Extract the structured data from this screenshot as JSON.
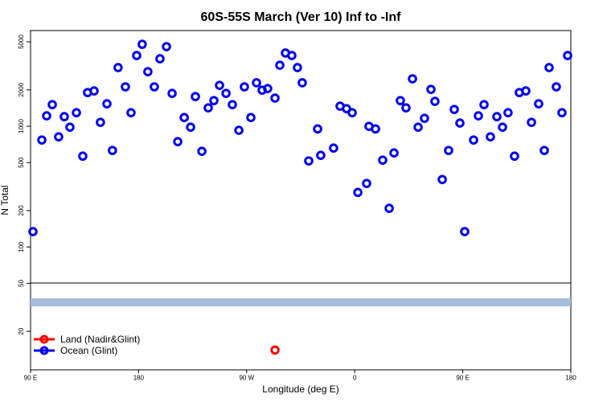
{
  "chart_data": {
    "type": "scatter",
    "title": "60S-55S March (Ver 10)   Inf to -Inf",
    "x_label": "Longitude (deg E)",
    "y_label": "N Total",
    "log_y": true,
    "legend_position": "bottom-left",
    "xlim": [
      90,
      540
    ],
    "xticks": [
      {
        "value": 90,
        "label": "90 E"
      },
      180,
      {
        "value": 270,
        "label": "90 W"
      },
      {
        "value": 360,
        "label": "0"
      },
      {
        "value": 450,
        "label": "90 E"
      },
      {
        "value": 540,
        "label": "180"
      }
    ],
    "ylim": [
      9.6,
      6200
    ],
    "yticks": [
      20,
      50,
      100,
      200,
      500,
      1000,
      2000,
      5000
    ],
    "series": [
      {
        "name": "Land (Nadir&Glint)",
        "color": "#ff0000",
        "x": [
          293.6
        ],
        "values": [
          14
        ]
      },
      {
        "name": "Ocean (Glint)",
        "color": "#0000ee",
        "x": [
          92.0,
          99.4,
          103.4,
          108.1,
          113.4,
          118.1,
          122.8,
          128.2,
          133.5,
          137.5,
          142.9,
          148.2,
          153.6,
          158.2,
          162.9,
          169.0,
          173.7,
          178.4,
          183.0,
          187.7,
          193.1,
          197.8,
          203.2,
          207.9,
          212.6,
          218.0,
          223.3,
          227.3,
          232.7,
          238.0,
          242.7,
          247.4,
          252.8,
          258.1,
          263.5,
          268.1,
          273.5,
          278.2,
          282.9,
          287.5,
          293.6,
          297.6,
          302.3,
          307.6,
          312.3,
          316.3,
          321.7,
          329.1,
          331.7,
          342.4,
          347.8,
          353.2,
          357.9,
          362.6,
          369.9,
          371.9,
          377.3,
          383.3,
          388.7,
          392.7,
          398.0,
          402.7,
          408.1,
          412.8,
          418.1,
          423.5,
          426.8,
          432.9,
          438.2,
          442.9,
          447.6,
          451.6,
          459.0,
          463.0,
          467.7,
          473.0,
          478.4,
          483.1,
          487.7,
          493.1,
          497.1,
          502.5,
          507.2,
          513.2,
          517.9,
          521.9,
          527.9,
          532.6,
          537.3
        ],
        "values": [
          134,
          769,
          1219,
          1510,
          817,
          1200,
          982,
          1294,
          565,
          1900,
          1960,
          1077,
          1534,
          630,
          3060,
          2120,
          1294,
          3850,
          4770,
          2830,
          2120,
          3620,
          4560,
          1870,
          745,
          1180,
          982,
          1760,
          620,
          1420,
          1630,
          2180,
          1870,
          1510,
          925,
          2120,
          1180,
          2290,
          1990,
          2050,
          1710,
          3200,
          4040,
          3850,
          3060,
          2290,
          516,
          950,
          574,
          659,
          1466,
          1398,
          1294,
          283,
          336,
          998,
          950,
          524,
          209,
          601,
          1630,
          1420,
          2470,
          982,
          1163,
          2020,
          1607,
          362,
          630,
          1377,
          1062,
          134,
          769,
          1219,
          1510,
          817,
          1200,
          982,
          1294,
          565,
          1900,
          1960,
          1077,
          1534,
          630,
          3060,
          2120,
          1294,
          3850
        ]
      }
    ]
  }
}
